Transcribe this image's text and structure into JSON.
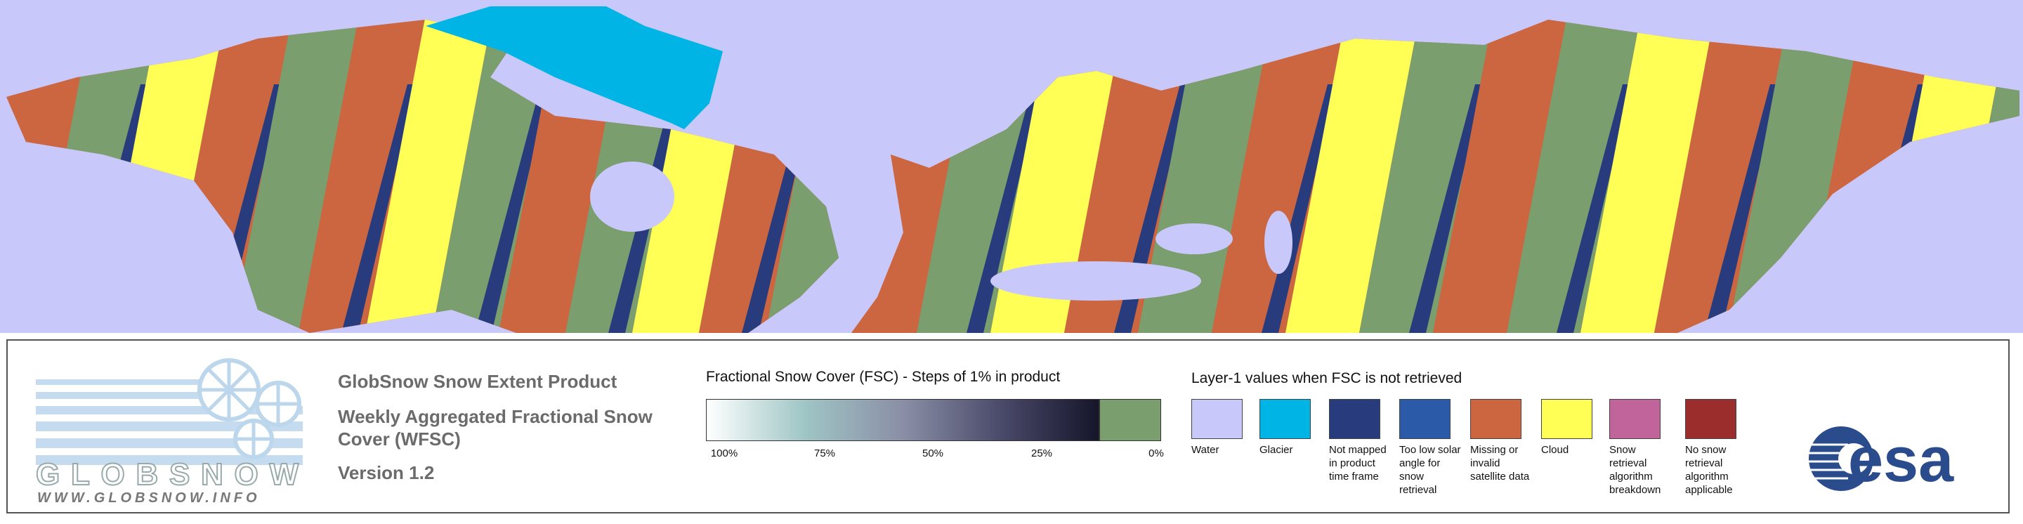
{
  "logo": {
    "name": "GLOBSNOW",
    "url": "WWW.GLOBSNOW.INFO"
  },
  "product": {
    "title": "GlobSnow Snow Extent Product",
    "subtitle": "Weekly Aggregated Fractional Snow Cover (WFSC)",
    "version": "Version 1.2"
  },
  "fsc_legend": {
    "title": "Fractional Snow Cover (FSC) - Steps of 1% in product",
    "ticks": [
      "100%",
      "75%",
      "50%",
      "25%",
      "0%"
    ],
    "snow_free_color": "#7a9e6e"
  },
  "layer1_legend": {
    "title": "Layer-1 values when FSC is not retrieved",
    "items": [
      {
        "label": "Water",
        "color": "#c8c8fa"
      },
      {
        "label": "Glacier",
        "color": "#00b4e6"
      },
      {
        "label": "Not mapped in product time frame",
        "color": "#283c7d"
      },
      {
        "label": "Too low solar angle for snow retrieval",
        "color": "#2b5aa8"
      },
      {
        "label": "Missing or invalid satellite data",
        "color": "#cc6640"
      },
      {
        "label": "Cloud",
        "color": "#ffff55"
      },
      {
        "label": "Snow retrieval algorithm breakdown",
        "color": "#c0649b"
      },
      {
        "label": "No snow retrieval algorithm applicable",
        "color": "#9b2d2d"
      }
    ]
  },
  "agency": "esa"
}
